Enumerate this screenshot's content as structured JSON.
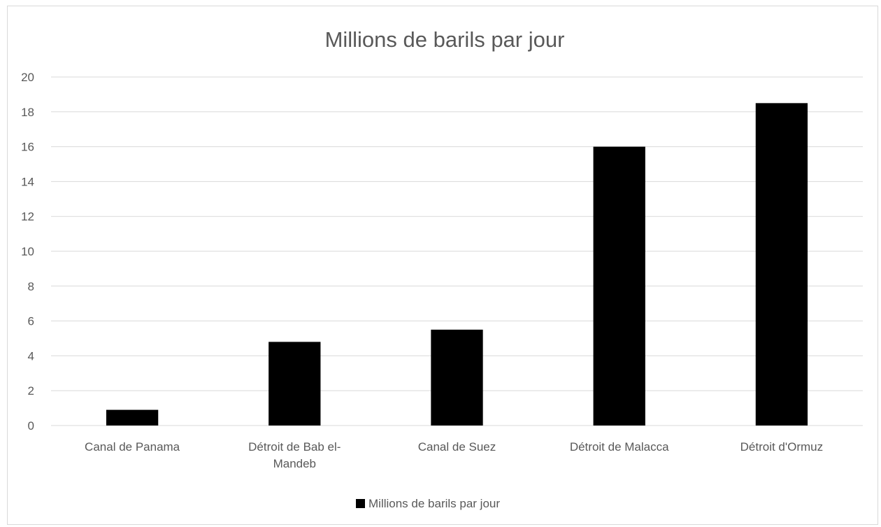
{
  "chart_data": {
    "type": "bar",
    "title": "Millions de barils par jour",
    "categories": [
      [
        "Canal de Panama"
      ],
      [
        "Détroit de Bab el-",
        "Mandeb"
      ],
      [
        "Canal de Suez"
      ],
      [
        "Détroit de Malacca"
      ],
      [
        "Détroit d'Ormuz"
      ]
    ],
    "series": [
      {
        "name": "Millions de barils par jour",
        "color": "#000000",
        "values": [
          0.9,
          4.8,
          5.5,
          16.0,
          18.5
        ]
      }
    ],
    "ylim": [
      0,
      20
    ],
    "yticks": [
      "0",
      "2",
      "4",
      "6",
      "8",
      "10",
      "12",
      "14",
      "16",
      "18",
      "20"
    ],
    "grid": true,
    "legend": "bottom",
    "colors": {
      "text": "#595959",
      "grid": "#d9d9d9"
    }
  }
}
